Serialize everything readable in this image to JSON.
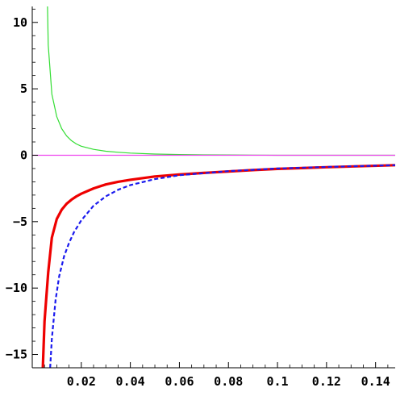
{
  "chart_data": {
    "type": "line",
    "title": "",
    "xlabel": "",
    "ylabel": "",
    "xlim": [
      0.0,
      0.148
    ],
    "ylim": [
      -16.0,
      11.2
    ],
    "grid": false,
    "legend": "none",
    "x_ticks": [
      {
        "value": 0.02,
        "label": "0.02"
      },
      {
        "value": 0.04,
        "label": "0.04"
      },
      {
        "value": 0.06,
        "label": "0.06"
      },
      {
        "value": 0.08,
        "label": "0.08"
      },
      {
        "value": 0.1,
        "label": "0.1"
      },
      {
        "value": 0.12,
        "label": "0.12"
      },
      {
        "value": 0.14,
        "label": "0.14"
      }
    ],
    "y_ticks": [
      {
        "value": 10,
        "label": "10"
      },
      {
        "value": 5,
        "label": "5"
      },
      {
        "value": 0,
        "label": "0"
      },
      {
        "value": -5,
        "label": "−5"
      },
      {
        "value": -10,
        "label": "−10"
      },
      {
        "value": -15,
        "label": "−15"
      }
    ],
    "series": [
      {
        "color": "#33dd33",
        "style": "solid",
        "stroke": "thin",
        "x": [
          0.0062,
          0.0065,
          0.008,
          0.01,
          0.012,
          0.014,
          0.016,
          0.018,
          0.02,
          0.025,
          0.03,
          0.035,
          0.04,
          0.05,
          0.06,
          0.07,
          0.08,
          0.09,
          0.1,
          0.12,
          0.148
        ],
        "y": [
          11.2,
          8.3,
          4.6,
          2.9,
          2.0,
          1.45,
          1.1,
          0.85,
          0.68,
          0.44,
          0.3,
          0.22,
          0.16,
          0.09,
          0.05,
          0.03,
          0.02,
          0.01,
          0.0,
          0.0,
          0.0
        ]
      },
      {
        "color": "#ee44ee",
        "style": "solid",
        "stroke": "thin",
        "x": [
          0.0,
          0.148
        ],
        "y": [
          0.0,
          0.0
        ]
      },
      {
        "color": "#ee0000",
        "style": "solid",
        "stroke": "thick",
        "x": [
          0.0043,
          0.005,
          0.0065,
          0.008,
          0.01,
          0.012,
          0.014,
          0.016,
          0.018,
          0.02,
          0.025,
          0.03,
          0.035,
          0.04,
          0.05,
          0.06,
          0.07,
          0.08,
          0.09,
          0.1,
          0.12,
          0.148
        ],
        "y": [
          -16.0,
          -12.5,
          -8.8,
          -6.2,
          -4.8,
          -4.1,
          -3.65,
          -3.35,
          -3.1,
          -2.9,
          -2.5,
          -2.2,
          -2.0,
          -1.85,
          -1.6,
          -1.45,
          -1.33,
          -1.22,
          -1.12,
          -1.03,
          -0.9,
          -0.75
        ]
      },
      {
        "color": "#1a1aee",
        "style": "dashed",
        "stroke": "medium",
        "x": [
          0.0073,
          0.008,
          0.0095,
          0.011,
          0.013,
          0.015,
          0.017,
          0.02,
          0.025,
          0.03,
          0.035,
          0.04,
          0.05,
          0.06,
          0.07,
          0.08,
          0.09,
          0.1,
          0.12,
          0.148
        ],
        "y": [
          -16.0,
          -13.8,
          -10.9,
          -9.1,
          -7.6,
          -6.6,
          -5.8,
          -4.9,
          -3.8,
          -3.1,
          -2.6,
          -2.25,
          -1.8,
          -1.5,
          -1.35,
          -1.2,
          -1.1,
          -1.0,
          -0.88,
          -0.75
        ]
      }
    ]
  }
}
